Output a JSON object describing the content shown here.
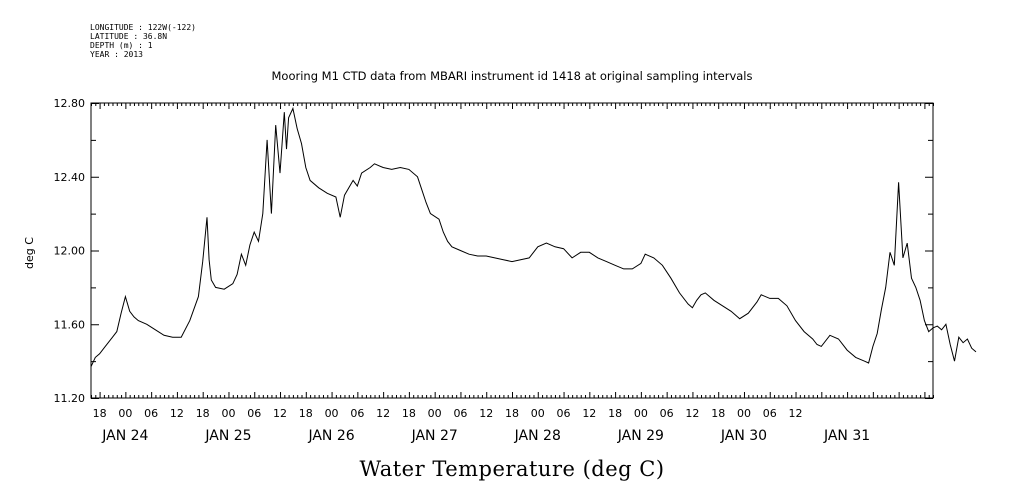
{
  "meta": {
    "longitude": "LONGITUDE : 122W(-122)",
    "latitude": "LATITUDE : 36.8N",
    "depth": "DEPTH (m) : 1",
    "year": "YEAR : 2013"
  },
  "chart_data": {
    "type": "line",
    "title": "Mooring M1 CTD data from MBARI instrument id 1418 at original sampling intervals",
    "caption": "Water Temperature (deg C)",
    "ylabel": "deg C",
    "ylim": [
      11.2,
      12.8
    ],
    "yticks": [
      "11.20",
      "11.60",
      "12.00",
      "12.40",
      "12.80"
    ],
    "xlim_hours": [
      -8,
      188
    ],
    "x_units": "hours from 2013-01-24 00:00",
    "hour_ticks": [
      "18",
      "00",
      "06",
      "12",
      "18",
      "00",
      "06",
      "12",
      "18",
      "00",
      "06",
      "12",
      "18",
      "00",
      "06",
      "12",
      "18",
      "00",
      "06",
      "12",
      "18",
      "00",
      "06",
      "12",
      "18",
      "00",
      "06",
      "12"
    ],
    "day_labels": [
      "JAN 24",
      "JAN 25",
      "JAN 26",
      "JAN 27",
      "JAN 28",
      "JAN 29",
      "JAN 30",
      "JAN 31"
    ],
    "grid": false,
    "series": [
      {
        "color": "#000000",
        "points": [
          [
            -8,
            11.37
          ],
          [
            -7,
            11.42
          ],
          [
            -6,
            11.44
          ],
          [
            -5,
            11.47
          ],
          [
            -4,
            11.5
          ],
          [
            -3,
            11.53
          ],
          [
            -2,
            11.56
          ],
          [
            -1,
            11.66
          ],
          [
            0,
            11.75
          ],
          [
            1,
            11.67
          ],
          [
            2,
            11.64
          ],
          [
            3,
            11.62
          ],
          [
            5,
            11.6
          ],
          [
            7,
            11.57
          ],
          [
            9,
            11.54
          ],
          [
            11,
            11.53
          ],
          [
            13,
            11.53
          ],
          [
            15,
            11.62
          ],
          [
            17,
            11.75
          ],
          [
            18,
            11.94
          ],
          [
            19,
            12.18
          ],
          [
            19.5,
            11.95
          ],
          [
            20,
            11.84
          ],
          [
            21,
            11.8
          ],
          [
            23,
            11.79
          ],
          [
            25,
            11.82
          ],
          [
            26,
            11.87
          ],
          [
            27,
            11.98
          ],
          [
            28,
            11.92
          ],
          [
            29,
            12.03
          ],
          [
            30,
            12.1
          ],
          [
            31,
            12.05
          ],
          [
            32,
            12.2
          ],
          [
            33,
            12.6
          ],
          [
            34,
            12.2
          ],
          [
            35,
            12.68
          ],
          [
            36,
            12.42
          ],
          [
            37,
            12.75
          ],
          [
            37.5,
            12.55
          ],
          [
            38,
            12.72
          ],
          [
            39,
            12.77
          ],
          [
            40,
            12.66
          ],
          [
            41,
            12.58
          ],
          [
            42,
            12.45
          ],
          [
            43,
            12.38
          ],
          [
            45,
            12.34
          ],
          [
            47,
            12.31
          ],
          [
            49,
            12.29
          ],
          [
            50,
            12.18
          ],
          [
            51,
            12.3
          ],
          [
            53,
            12.38
          ],
          [
            54,
            12.35
          ],
          [
            55,
            12.42
          ],
          [
            57,
            12.45
          ],
          [
            58,
            12.47
          ],
          [
            60,
            12.45
          ],
          [
            62,
            12.44
          ],
          [
            64,
            12.45
          ],
          [
            66,
            12.44
          ],
          [
            68,
            12.4
          ],
          [
            69,
            12.33
          ],
          [
            70,
            12.26
          ],
          [
            71,
            12.2
          ],
          [
            73,
            12.17
          ],
          [
            74,
            12.1
          ],
          [
            75,
            12.05
          ],
          [
            76,
            12.02
          ],
          [
            78,
            12.0
          ],
          [
            80,
            11.98
          ],
          [
            82,
            11.97
          ],
          [
            84,
            11.97
          ],
          [
            86,
            11.96
          ],
          [
            88,
            11.95
          ],
          [
            90,
            11.94
          ],
          [
            92,
            11.95
          ],
          [
            94,
            11.96
          ],
          [
            96,
            12.02
          ],
          [
            98,
            12.04
          ],
          [
            100,
            12.02
          ],
          [
            102,
            12.01
          ],
          [
            104,
            11.96
          ],
          [
            106,
            11.99
          ],
          [
            108,
            11.99
          ],
          [
            110,
            11.96
          ],
          [
            112,
            11.94
          ],
          [
            114,
            11.92
          ],
          [
            116,
            11.9
          ],
          [
            118,
            11.9
          ],
          [
            120,
            11.93
          ],
          [
            121,
            11.98
          ],
          [
            123,
            11.96
          ],
          [
            125,
            11.92
          ],
          [
            127,
            11.85
          ],
          [
            129,
            11.77
          ],
          [
            131,
            11.71
          ],
          [
            132,
            11.69
          ],
          [
            133,
            11.73
          ],
          [
            134,
            11.76
          ],
          [
            135,
            11.77
          ],
          [
            137,
            11.73
          ],
          [
            139,
            11.7
          ],
          [
            141,
            11.67
          ],
          [
            143,
            11.63
          ],
          [
            145,
            11.66
          ],
          [
            147,
            11.72
          ],
          [
            148,
            11.76
          ],
          [
            150,
            11.74
          ],
          [
            152,
            11.74
          ],
          [
            154,
            11.7
          ],
          [
            156,
            11.62
          ],
          [
            158,
            11.56
          ],
          [
            160,
            11.52
          ],
          [
            161,
            11.49
          ],
          [
            162,
            11.48
          ],
          [
            164,
            11.54
          ],
          [
            166,
            11.52
          ],
          [
            168,
            11.46
          ],
          [
            170,
            11.42
          ],
          [
            172,
            11.4
          ],
          [
            173,
            11.39
          ],
          [
            174,
            11.48
          ],
          [
            175,
            11.55
          ],
          [
            176,
            11.68
          ],
          [
            177,
            11.8
          ],
          [
            178,
            11.99
          ],
          [
            179,
            11.92
          ],
          [
            180,
            12.37
          ],
          [
            181,
            11.96
          ],
          [
            182,
            12.04
          ],
          [
            183,
            11.85
          ],
          [
            184,
            11.8
          ],
          [
            185,
            11.73
          ],
          [
            186,
            11.62
          ],
          [
            187,
            11.56
          ],
          [
            188,
            11.58
          ],
          [
            189,
            11.59
          ],
          [
            190,
            11.57
          ],
          [
            191,
            11.6
          ],
          [
            192,
            11.49
          ],
          [
            193,
            11.4
          ],
          [
            194,
            11.53
          ],
          [
            195,
            11.5
          ],
          [
            196,
            11.52
          ],
          [
            197,
            11.47
          ],
          [
            198,
            11.45
          ]
        ]
      }
    ]
  }
}
